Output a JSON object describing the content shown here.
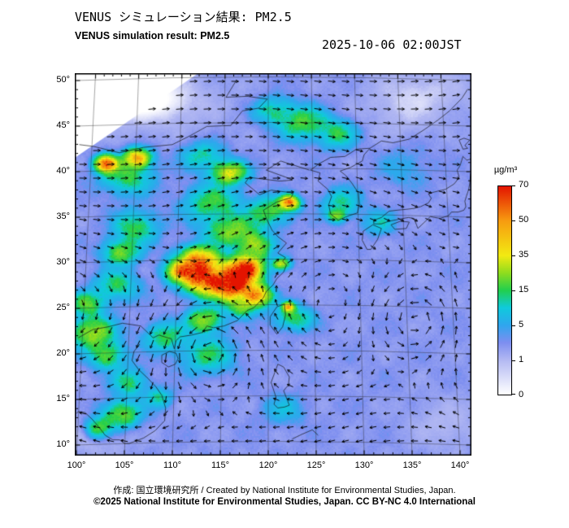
{
  "header": {
    "title_jp": "VENUS シミュレーション結果: PM2.5",
    "title_en": "VENUS simulation result: PM2.5",
    "timestamp": "2025-10-06 02:00JST"
  },
  "colorbar": {
    "label": "µg/m³"
  },
  "footer": {
    "attribution": "作成:  国立環境研究所 / Created by National Institute for Environmental Studies, Japan.",
    "copyright": "©2025 National Institute for Environmental Studies, Japan. CC BY-NC 4.0 International"
  },
  "chart_data": {
    "type": "heatmap",
    "variable": "PM2.5 surface concentration with wind vectors",
    "region": "East Asia",
    "units": "µg/m³",
    "timestamp": "2025-10-06 02:00JST",
    "lon_range": [
      100,
      140
    ],
    "lat_range": [
      10,
      50
    ],
    "lon_ticks": [
      {
        "v": 100,
        "label": "100°"
      },
      {
        "v": 105,
        "label": "105°"
      },
      {
        "v": 110,
        "label": "110°"
      },
      {
        "v": 115,
        "label": "115°"
      },
      {
        "v": 120,
        "label": "120°"
      },
      {
        "v": 125,
        "label": "125°"
      },
      {
        "v": 130,
        "label": "130°"
      },
      {
        "v": 135,
        "label": "135°"
      },
      {
        "v": 140,
        "label": "140°"
      }
    ],
    "lat_ticks": [
      {
        "v": 50,
        "label": "50°"
      },
      {
        "v": 45,
        "label": "45°"
      },
      {
        "v": 40,
        "label": "40°"
      },
      {
        "v": 35,
        "label": "35°"
      },
      {
        "v": 30,
        "label": "30°"
      },
      {
        "v": 25,
        "label": "25°"
      },
      {
        "v": 20,
        "label": "20°"
      },
      {
        "v": 15,
        "label": "15°"
      },
      {
        "v": 10,
        "label": "10°"
      }
    ],
    "colorbar_ticks": [
      70,
      50,
      35,
      15,
      5,
      1,
      0
    ],
    "colormap_stops": [
      {
        "v": 0,
        "c": "#ffffff"
      },
      {
        "v": 1,
        "c": "#b2b8f2"
      },
      {
        "v": 3,
        "c": "#7d8ef0"
      },
      {
        "v": 5,
        "c": "#2fa6ee"
      },
      {
        "v": 10,
        "c": "#0fcadc"
      },
      {
        "v": 15,
        "c": "#21cf4e"
      },
      {
        "v": 25,
        "c": "#8edc1e"
      },
      {
        "v": 35,
        "c": "#f2ea12"
      },
      {
        "v": 50,
        "c": "#f79c10"
      },
      {
        "v": 70,
        "c": "#e31400"
      }
    ],
    "base_value": 2.6,
    "features_format": "[lat, lon, sigma_lat_deg, sigma_lon_deg, amplitude_ugm3]",
    "features": [
      [
        47.5,
        108,
        3.5,
        7,
        -2.4
      ],
      [
        49,
        103,
        3,
        5,
        -2.2
      ],
      [
        48.5,
        136,
        3,
        6,
        -1.8
      ],
      [
        11,
        101.5,
        2.5,
        4,
        -1.8
      ],
      [
        12,
        138.5,
        3,
        4,
        -1.5
      ],
      [
        45.5,
        134,
        2.5,
        4,
        -1.0
      ],
      [
        28.2,
        113.5,
        1.6,
        2.2,
        68
      ],
      [
        27.3,
        116.5,
        1.5,
        2.0,
        64
      ],
      [
        29.2,
        117.6,
        1.2,
        1.7,
        55
      ],
      [
        30.2,
        112.6,
        1.2,
        1.8,
        40
      ],
      [
        26.1,
        118.8,
        1.0,
        1.3,
        46
      ],
      [
        28.8,
        110.8,
        1.0,
        1.4,
        30
      ],
      [
        31.6,
        118.6,
        1.2,
        1.5,
        26
      ],
      [
        33.2,
        116.2,
        1.5,
        2.4,
        20
      ],
      [
        36.2,
        114.2,
        1.8,
        2.6,
        14
      ],
      [
        39.6,
        115.9,
        1.1,
        1.6,
        30
      ],
      [
        41.4,
        113.2,
        1.4,
        2.0,
        10
      ],
      [
        33.6,
        106.2,
        1.6,
        2.0,
        14
      ],
      [
        30.9,
        104.6,
        1.2,
        1.6,
        20
      ],
      [
        27.2,
        104.2,
        1.5,
        2.0,
        12
      ],
      [
        25.2,
        101.2,
        1.2,
        1.6,
        16
      ],
      [
        40.6,
        103.1,
        0.8,
        1.0,
        52
      ],
      [
        41.2,
        106.4,
        0.9,
        1.2,
        46
      ],
      [
        39.3,
        105.2,
        1.8,
        2.4,
        14
      ],
      [
        36.3,
        122.2,
        0.7,
        0.9,
        50
      ],
      [
        35.4,
        120.2,
        1.4,
        1.9,
        16
      ],
      [
        36.2,
        127.6,
        1.5,
        1.8,
        10
      ],
      [
        34.9,
        127.2,
        0.6,
        0.8,
        20
      ],
      [
        23.4,
        113.4,
        1.2,
        1.6,
        24
      ],
      [
        24.9,
        117.3,
        1.0,
        1.4,
        18
      ],
      [
        23.7,
        122.6,
        1.2,
        1.8,
        14
      ],
      [
        24.9,
        122.1,
        0.5,
        0.6,
        36
      ],
      [
        29.6,
        121.4,
        0.6,
        0.8,
        30
      ],
      [
        22.1,
        101.6,
        1.5,
        2.0,
        24
      ],
      [
        19.6,
        103.2,
        1.3,
        1.6,
        18
      ],
      [
        16.6,
        105.6,
        1.4,
        1.6,
        12
      ],
      [
        13.1,
        104.6,
        1.3,
        1.8,
        20
      ],
      [
        11.6,
        102.2,
        1.0,
        1.2,
        16
      ],
      [
        14.9,
        108.6,
        1.0,
        1.2,
        10
      ],
      [
        19.6,
        113.6,
        1.8,
        2.5,
        11
      ],
      [
        21.6,
        109.2,
        1.4,
        1.9,
        13
      ],
      [
        45.1,
        123.6,
        1.6,
        2.2,
        15
      ],
      [
        43.9,
        127.1,
        1.4,
        1.8,
        12
      ],
      [
        46.4,
        120.6,
        1.3,
        1.8,
        11
      ],
      [
        34.1,
        131.6,
        1.2,
        1.5,
        7
      ],
      [
        40.1,
        134.2,
        2.0,
        2.5,
        3
      ],
      [
        13.6,
        121.6,
        1.5,
        2.0,
        5
      ]
    ],
    "wind": {
      "grid_step": 17,
      "arrow_len": 9.5,
      "vortices": [
        {
          "lat": 20.3,
          "lon": 113.8,
          "k": 50,
          "core": 5
        },
        {
          "lat": 23.5,
          "lon": 135.5,
          "k": 42,
          "core": 6
        }
      ]
    }
  }
}
